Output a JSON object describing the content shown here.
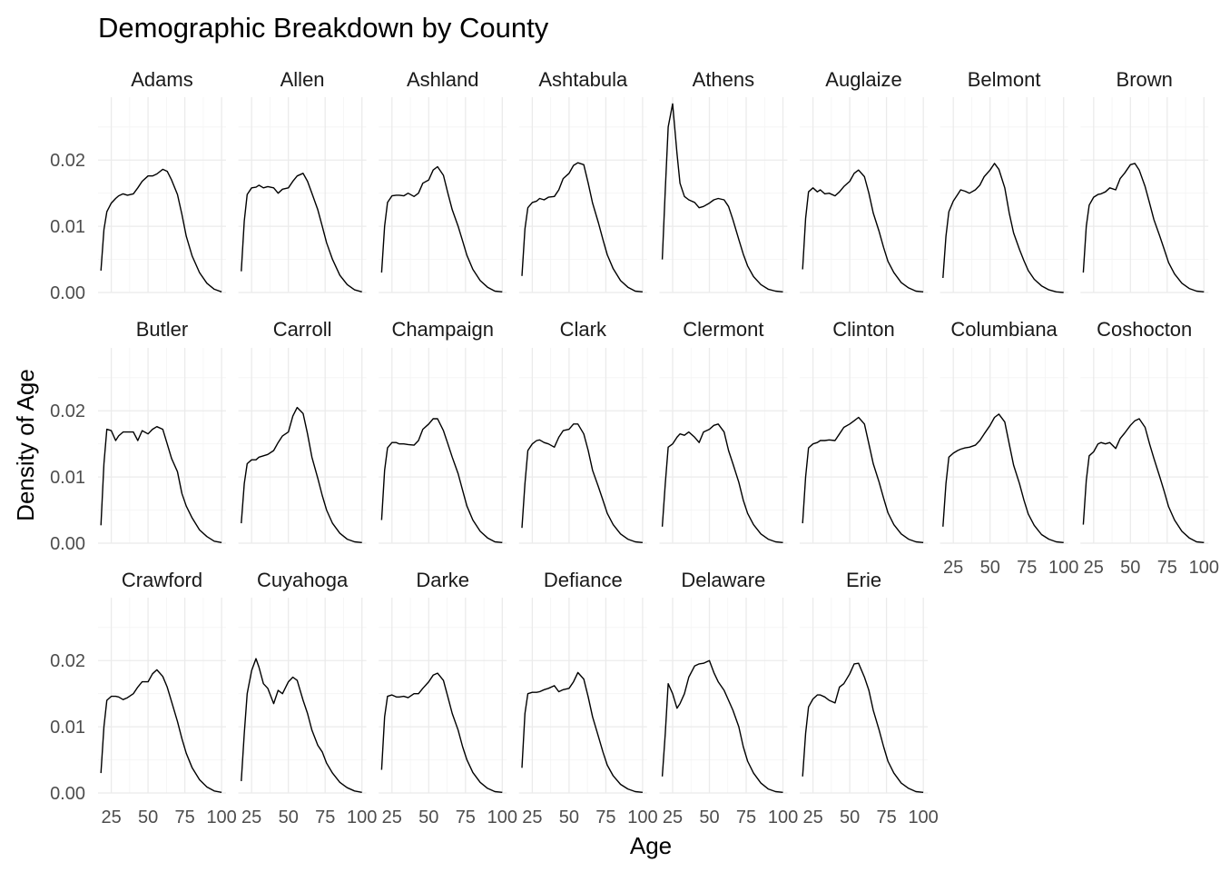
{
  "chart_data": {
    "type": "line",
    "title": "Demographic Breakdown by County",
    "xlabel": "Age",
    "ylabel": "Density of Age",
    "xlim": [
      16,
      103
    ],
    "ylim": [
      0,
      0.0295
    ],
    "x_ticks": [
      25,
      50,
      75,
      100
    ],
    "x_tick_labels": [
      "25",
      "50",
      "75",
      "100"
    ],
    "y_ticks": [
      0,
      0.01,
      0.02
    ],
    "y_tick_labels": [
      "0.00",
      "0.01",
      "0.02"
    ],
    "grid": true,
    "ncol": 8,
    "x": [
      18,
      20,
      22,
      25,
      28,
      30,
      33,
      36,
      40,
      43,
      46,
      50,
      53,
      56,
      60,
      63,
      66,
      70,
      73,
      76,
      80,
      85,
      90,
      95,
      100
    ],
    "panels": [
      {
        "name": "Adams",
        "values": [
          0.0033,
          0.0095,
          0.0122,
          0.0135,
          0.0142,
          0.0146,
          0.0149,
          0.0147,
          0.0149,
          0.0158,
          0.0168,
          0.0176,
          0.0176,
          0.0179,
          0.0186,
          0.0183,
          0.017,
          0.0148,
          0.0118,
          0.0085,
          0.0055,
          0.003,
          0.0014,
          0.0005,
          0.0001
        ]
      },
      {
        "name": "Allen",
        "values": [
          0.0032,
          0.0108,
          0.0148,
          0.0158,
          0.0159,
          0.0162,
          0.0158,
          0.016,
          0.0158,
          0.015,
          0.0156,
          0.0158,
          0.0168,
          0.0176,
          0.018,
          0.0168,
          0.015,
          0.0125,
          0.01,
          0.0075,
          0.005,
          0.0026,
          0.0012,
          0.0004,
          0.0001
        ]
      },
      {
        "name": "Ashland",
        "values": [
          0.003,
          0.01,
          0.0136,
          0.0146,
          0.0147,
          0.0147,
          0.0146,
          0.015,
          0.0145,
          0.015,
          0.0165,
          0.017,
          0.0185,
          0.019,
          0.0177,
          0.015,
          0.0125,
          0.01,
          0.0078,
          0.0056,
          0.0035,
          0.0018,
          0.0008,
          0.0002,
          0.0001
        ]
      },
      {
        "name": "Ashtabula",
        "values": [
          0.0025,
          0.0096,
          0.0128,
          0.0136,
          0.0138,
          0.0142,
          0.014,
          0.0144,
          0.0145,
          0.0155,
          0.0172,
          0.018,
          0.0192,
          0.0196,
          0.0193,
          0.0165,
          0.0135,
          0.0105,
          0.008,
          0.0057,
          0.0036,
          0.0018,
          0.0008,
          0.0002,
          0.0001
        ]
      },
      {
        "name": "Athens",
        "values": [
          0.005,
          0.0155,
          0.025,
          0.0285,
          0.021,
          0.0165,
          0.0145,
          0.014,
          0.0136,
          0.0128,
          0.013,
          0.0135,
          0.014,
          0.0142,
          0.014,
          0.013,
          0.011,
          0.008,
          0.0058,
          0.004,
          0.0024,
          0.0012,
          0.0005,
          0.0002,
          0.0001
        ]
      },
      {
        "name": "Auglaize",
        "values": [
          0.0035,
          0.0112,
          0.0152,
          0.0158,
          0.0152,
          0.0155,
          0.0149,
          0.015,
          0.0146,
          0.0152,
          0.016,
          0.0168,
          0.018,
          0.0185,
          0.0175,
          0.015,
          0.012,
          0.0092,
          0.0068,
          0.0047,
          0.003,
          0.0015,
          0.0007,
          0.0002,
          0.0001
        ]
      },
      {
        "name": "Belmont",
        "values": [
          0.0022,
          0.0085,
          0.0122,
          0.0138,
          0.0148,
          0.0155,
          0.0153,
          0.015,
          0.0155,
          0.0162,
          0.0175,
          0.0185,
          0.0195,
          0.0186,
          0.0158,
          0.012,
          0.009,
          0.0065,
          0.0048,
          0.0033,
          0.002,
          0.001,
          0.0004,
          0.0001,
          0.0
        ]
      },
      {
        "name": "Brown",
        "values": [
          0.003,
          0.01,
          0.0132,
          0.0144,
          0.0148,
          0.0149,
          0.0152,
          0.0158,
          0.0155,
          0.0172,
          0.018,
          0.0193,
          0.0195,
          0.0185,
          0.016,
          0.0135,
          0.011,
          0.0085,
          0.0065,
          0.0045,
          0.0028,
          0.0014,
          0.0006,
          0.0002,
          0.0001
        ]
      },
      {
        "name": "Butler",
        "values": [
          0.0027,
          0.012,
          0.0172,
          0.017,
          0.0155,
          0.0162,
          0.0168,
          0.0168,
          0.0168,
          0.0155,
          0.017,
          0.0165,
          0.0172,
          0.0176,
          0.0172,
          0.015,
          0.0128,
          0.0108,
          0.0075,
          0.0056,
          0.0038,
          0.002,
          0.001,
          0.0003,
          0.0001
        ]
      },
      {
        "name": "Carroll",
        "values": [
          0.003,
          0.009,
          0.012,
          0.0126,
          0.0126,
          0.013,
          0.0132,
          0.0134,
          0.014,
          0.0152,
          0.0162,
          0.0168,
          0.0192,
          0.0205,
          0.0196,
          0.0165,
          0.013,
          0.0098,
          0.0072,
          0.005,
          0.003,
          0.0015,
          0.0006,
          0.0002,
          0.0001
        ]
      },
      {
        "name": "Champaign",
        "values": [
          0.0035,
          0.011,
          0.0144,
          0.0152,
          0.0152,
          0.015,
          0.015,
          0.0149,
          0.0148,
          0.0155,
          0.0172,
          0.018,
          0.0188,
          0.0188,
          0.017,
          0.015,
          0.013,
          0.0105,
          0.008,
          0.0056,
          0.0035,
          0.0018,
          0.0008,
          0.0002,
          0.0001
        ]
      },
      {
        "name": "Clark",
        "values": [
          0.0023,
          0.009,
          0.014,
          0.015,
          0.0155,
          0.0156,
          0.0152,
          0.015,
          0.0145,
          0.016,
          0.017,
          0.0172,
          0.018,
          0.018,
          0.0165,
          0.014,
          0.011,
          0.0085,
          0.0065,
          0.0045,
          0.0028,
          0.0014,
          0.0006,
          0.0002,
          0.0001
        ]
      },
      {
        "name": "Clermont",
        "values": [
          0.0025,
          0.009,
          0.0145,
          0.015,
          0.016,
          0.0165,
          0.0163,
          0.0168,
          0.016,
          0.0152,
          0.0168,
          0.0172,
          0.0178,
          0.018,
          0.0168,
          0.014,
          0.012,
          0.0092,
          0.0065,
          0.0045,
          0.0028,
          0.0014,
          0.0006,
          0.0002,
          0.0001
        ]
      },
      {
        "name": "Clinton",
        "values": [
          0.003,
          0.01,
          0.0144,
          0.015,
          0.0152,
          0.0155,
          0.0155,
          0.0156,
          0.0155,
          0.0165,
          0.0175,
          0.018,
          0.0185,
          0.019,
          0.018,
          0.015,
          0.012,
          0.0092,
          0.0068,
          0.0046,
          0.0028,
          0.0014,
          0.0006,
          0.0002,
          0.0001
        ]
      },
      {
        "name": "Columbiana",
        "values": [
          0.0025,
          0.009,
          0.013,
          0.0136,
          0.014,
          0.0142,
          0.0144,
          0.0145,
          0.0148,
          0.0155,
          0.0165,
          0.0178,
          0.019,
          0.0195,
          0.0183,
          0.015,
          0.0118,
          0.009,
          0.0065,
          0.0044,
          0.0027,
          0.0013,
          0.0006,
          0.0002,
          0.0001
        ]
      },
      {
        "name": "Coshocton",
        "values": [
          0.0028,
          0.0095,
          0.0132,
          0.0138,
          0.015,
          0.0152,
          0.015,
          0.0152,
          0.0143,
          0.0158,
          0.0166,
          0.0178,
          0.0185,
          0.0188,
          0.0175,
          0.015,
          0.0128,
          0.01,
          0.0078,
          0.0055,
          0.0035,
          0.0018,
          0.0008,
          0.0002,
          0.0001
        ]
      },
      {
        "name": "Crawford",
        "values": [
          0.003,
          0.01,
          0.014,
          0.0146,
          0.0146,
          0.0145,
          0.0141,
          0.0144,
          0.015,
          0.016,
          0.0168,
          0.0168,
          0.018,
          0.0186,
          0.0176,
          0.016,
          0.0138,
          0.0108,
          0.0082,
          0.006,
          0.0038,
          0.002,
          0.0009,
          0.0003,
          0.0001
        ]
      },
      {
        "name": "Cuyahoga",
        "values": [
          0.0018,
          0.009,
          0.015,
          0.0185,
          0.0203,
          0.019,
          0.0165,
          0.0158,
          0.0135,
          0.0155,
          0.015,
          0.0168,
          0.0175,
          0.017,
          0.014,
          0.012,
          0.0095,
          0.0072,
          0.0062,
          0.0045,
          0.003,
          0.0016,
          0.0008,
          0.0003,
          0.0001
        ]
      },
      {
        "name": "Darke",
        "values": [
          0.0035,
          0.0115,
          0.0146,
          0.0148,
          0.0145,
          0.0145,
          0.0146,
          0.0144,
          0.015,
          0.015,
          0.0158,
          0.0168,
          0.0178,
          0.0181,
          0.017,
          0.0145,
          0.012,
          0.0095,
          0.007,
          0.005,
          0.0031,
          0.0016,
          0.0007,
          0.0002,
          0.0001
        ]
      },
      {
        "name": "Defiance",
        "values": [
          0.0038,
          0.012,
          0.015,
          0.0152,
          0.0152,
          0.0153,
          0.0156,
          0.0158,
          0.0162,
          0.0153,
          0.0156,
          0.0158,
          0.0168,
          0.0182,
          0.0172,
          0.0145,
          0.0115,
          0.0085,
          0.0062,
          0.0042,
          0.0026,
          0.0013,
          0.0006,
          0.0002,
          0.0001
        ]
      },
      {
        "name": "Delaware",
        "values": [
          0.0025,
          0.009,
          0.0165,
          0.015,
          0.0128,
          0.0135,
          0.015,
          0.0175,
          0.0192,
          0.0195,
          0.0196,
          0.02,
          0.0182,
          0.0168,
          0.0155,
          0.014,
          0.0125,
          0.01,
          0.007,
          0.0048,
          0.003,
          0.0015,
          0.0006,
          0.0002,
          0.0001
        ]
      },
      {
        "name": "Erie",
        "values": [
          0.0025,
          0.009,
          0.013,
          0.0142,
          0.0148,
          0.0148,
          0.0145,
          0.014,
          0.0136,
          0.016,
          0.0165,
          0.018,
          0.0195,
          0.0196,
          0.0175,
          0.0155,
          0.0125,
          0.0095,
          0.007,
          0.0048,
          0.003,
          0.0015,
          0.0007,
          0.0002,
          0.0001
        ]
      }
    ]
  }
}
